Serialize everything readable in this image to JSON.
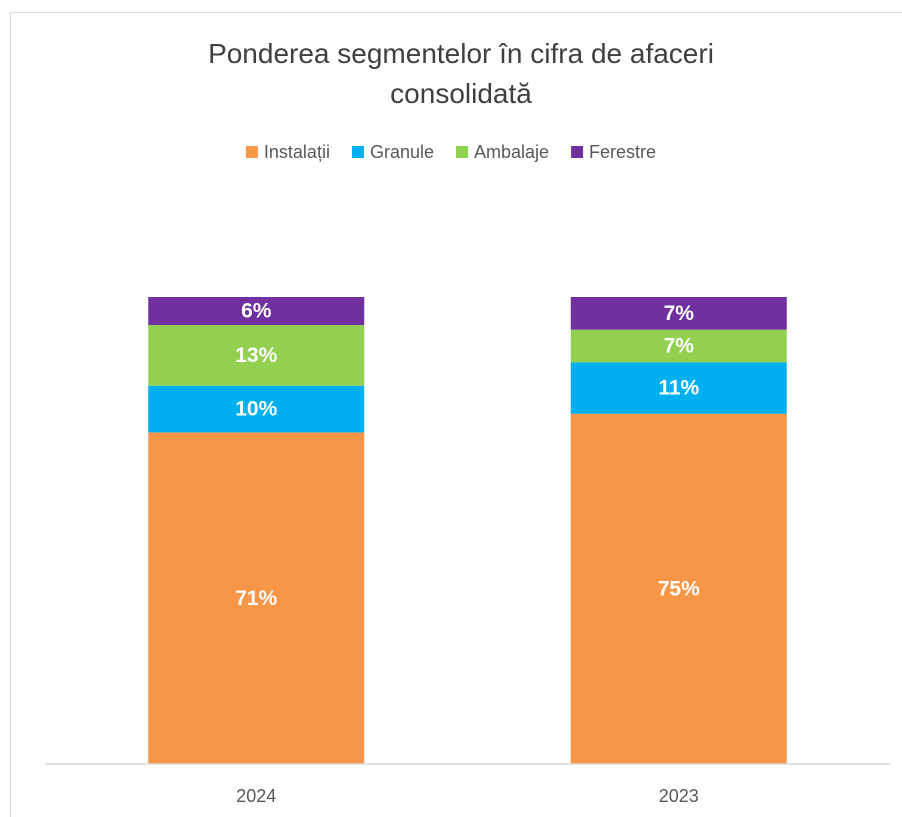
{
  "chart_data": {
    "type": "stacked_bar",
    "title": "Ponderea segmentelor în cifra de afaceri consolidată",
    "categories": [
      "2024",
      "2023"
    ],
    "series": [
      {
        "name": "Instalații",
        "color": "#f79646",
        "values": [
          71,
          75
        ],
        "value_labels": [
          "71%",
          "75%"
        ]
      },
      {
        "name": "Granule",
        "color": "#00b0f0",
        "values": [
          10,
          11
        ],
        "value_labels": [
          "10%",
          "11%"
        ]
      },
      {
        "name": "Ambalaje",
        "color": "#92d050",
        "values": [
          13,
          7
        ],
        "value_labels": [
          "13%",
          "7%"
        ]
      },
      {
        "name": "Ferestre",
        "color": "#7030a0",
        "values": [
          6,
          7
        ],
        "value_labels": [
          "6%",
          "7%"
        ]
      }
    ],
    "ylim": [
      0,
      100
    ],
    "legend": "top"
  }
}
